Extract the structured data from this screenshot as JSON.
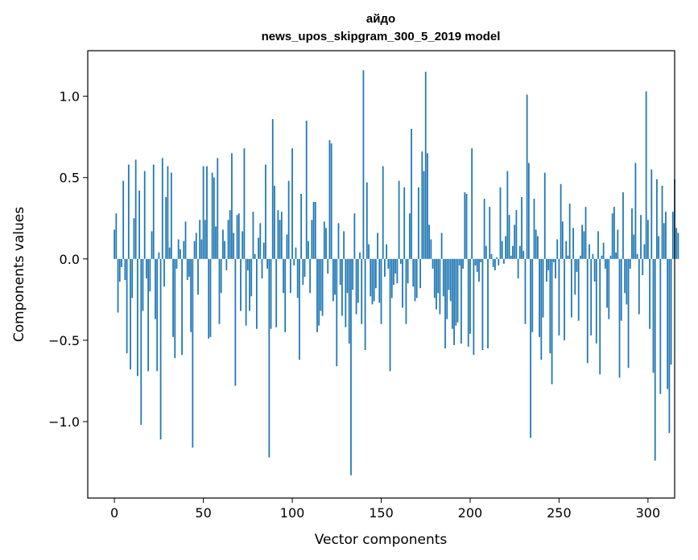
{
  "chart_data": {
    "type": "bar",
    "title_line1": "айдо",
    "title_line2": "news_upos_skipgram_300_5_2019 model",
    "xlabel": "Vector components",
    "ylabel": "Components values",
    "xlim": [
      -15,
      315
    ],
    "ylim": [
      -1.47,
      1.28
    ],
    "xticks": [
      0,
      50,
      100,
      150,
      200,
      250,
      300
    ],
    "xtick_labels": [
      "0",
      "50",
      "100",
      "150",
      "200",
      "250",
      "300"
    ],
    "yticks": [
      -1.0,
      -0.5,
      0.0,
      0.5,
      1.0
    ],
    "ytick_labels": [
      "−1.0",
      "−0.5",
      "0.0",
      "0.5",
      "1.0"
    ],
    "color": "#1f77b4",
    "values": [
      0.18,
      0.28,
      -0.33,
      -0.14,
      -0.05,
      0.48,
      -0.13,
      -0.58,
      0.58,
      -0.68,
      -0.24,
      0.25,
      0.61,
      -0.72,
      0.42,
      -1.02,
      -0.32,
      0.54,
      -0.12,
      -0.69,
      -0.2,
      0.17,
      0.58,
      -0.37,
      -0.69,
      0.04,
      -1.11,
      0.62,
      -0.17,
      0.38,
      0.57,
      0.07,
      0.53,
      -0.48,
      -0.61,
      -0.06,
      0.12,
      0.06,
      -0.59,
      0.11,
      0.23,
      -0.13,
      -0.11,
      -0.45,
      -1.16,
      0.11,
      0.16,
      -0.22,
      0.24,
      0.12,
      0.57,
      0.24,
      0.57,
      -0.49,
      -0.48,
      0.53,
      0.5,
      0.2,
      0.62,
      -0.4,
      -0.21,
      0.18,
      0.11,
      -0.07,
      0.24,
      0.3,
      0.65,
      0.16,
      -0.78,
      0.27,
      0.28,
      -0.32,
      0.17,
      0.68,
      -0.41,
      -0.07,
      -0.32,
      -0.23,
      0.29,
      0.03,
      -0.43,
      0.13,
      0.22,
      -0.12,
      0.1,
      0.58,
      -0.06,
      -1.22,
      -0.43,
      0.86,
      0.45,
      -0.42,
      0.3,
      0.24,
      0.29,
      -0.21,
      -0.45,
      0.15,
      0.48,
      -0.21,
      0.68,
      -0.04,
      0.07,
      -0.24,
      -0.62,
      0.4,
      -0.16,
      -0.11,
      0.85,
      0.11,
      -0.21,
      0.24,
      0.35,
      0.35,
      -0.45,
      -0.41,
      -0.32,
      -0.35,
      0.23,
      0.19,
      -0.09,
      0.73,
      0.71,
      -0.26,
      -0.22,
      -0.66,
      0.22,
      -0.16,
      -0.35,
      0.17,
      -0.42,
      -0.21,
      -0.52,
      -1.33,
      -0.19,
      0.28,
      -0.34,
      -0.27,
      0.04,
      -0.4,
      1.16,
      -0.56,
      0.47,
      0.09,
      -0.23,
      -0.28,
      -0.26,
      -0.18,
      0.16,
      -0.27,
      -0.4,
      0.57,
      -0.11,
      0.09,
      -0.06,
      -0.69,
      -0.24,
      -0.16,
      -0.09,
      -0.15,
      0.48,
      -0.03,
      -0.3,
      0.44,
      -0.4,
      -0.15,
      0.28,
      0.8,
      -0.17,
      -0.26,
      -0.24,
      0.44,
      -0.18,
      0.66,
      0.54,
      1.15,
      0.65,
      0.21,
      0.12,
      -0.06,
      -0.24,
      -0.31,
      -0.21,
      -0.34,
      0.16,
      -0.23,
      -0.55,
      -0.37,
      -0.19,
      -0.26,
      -0.43,
      -0.53,
      -0.41,
      -0.39,
      -0.04,
      -0.52,
      -0.06,
      0.41,
      0.4,
      -0.54,
      -0.46,
      0.68,
      -0.59,
      -0.04,
      -0.08,
      -0.14,
      -0.02,
      -0.56,
      0.37,
      0.08,
      -0.55,
      0.32,
      0.03,
      -0.05,
      -0.07,
      0.01,
      -0.04,
      0.44,
      0.11,
      -0.03,
      0.14,
      0.54,
      0.27,
      0.02,
      0.08,
      0.21,
      0.3,
      -0.12,
      0.08,
      0.38,
      0.05,
      -0.4,
      1.01,
      0.59,
      -1.1,
      -0.45,
      0.37,
      0.18,
      0.14,
      -0.48,
      -0.62,
      -0.36,
      0.53,
      -0.14,
      -0.07,
      -0.58,
      -0.77,
      -0.02,
      -0.12,
      0.12,
      -0.47,
      0.46,
      0.23,
      -0.5,
      0.11,
      0.02,
      0.34,
      -0.36,
      0.19,
      -0.22,
      -0.08,
      -0.38,
      0.02,
      0.21,
      0.17,
      0.32,
      -0.64,
      0.09,
      -0.47,
      0.03,
      -0.14,
      -0.52,
      0.17,
      -0.71,
      0.02,
      0.1,
      -0.06,
      -0.3,
      -0.37,
      0.02,
      0.28,
      0.32,
      0.04,
      0.18,
      -0.73,
      -0.38,
      0.41,
      -0.21,
      -0.28,
      -0.67,
      -0.06,
      0.31,
      0.15,
      0.59,
      0.03,
      -0.34,
      0.27,
      -0.1,
      0.09,
      1.03,
      0.24,
      -0.43,
      0.55,
      -0.7,
      -1.24,
      0.49,
      0.14,
      -0.83,
      0.45,
      0.22,
      0.29,
      -0.8,
      -1.07,
      -0.65,
      0.29,
      0.49,
      0.19,
      0.16
    ]
  }
}
